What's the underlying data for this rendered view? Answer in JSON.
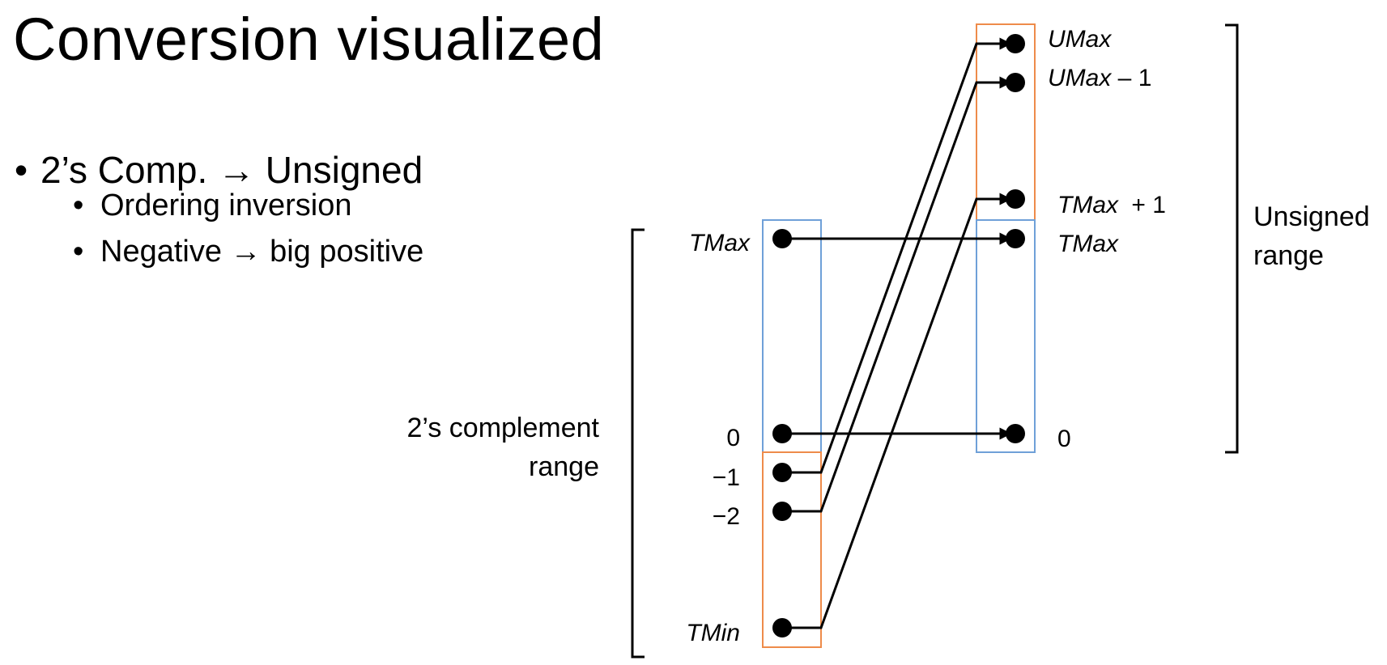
{
  "slide": {
    "title": "Conversion visualized",
    "bullets": [
      {
        "text": "2’s Comp. → Unsigned",
        "sub": [
          "Ordering inversion",
          "Negative → big positive"
        ]
      }
    ]
  },
  "diagram": {
    "left_range_label": [
      "2’s complement",
      "range"
    ],
    "right_range_label": [
      "Unsigned",
      "range"
    ],
    "left_labels": {
      "tmax": "TMax",
      "zero": "0",
      "neg1": "−1",
      "neg2": "−2",
      "tmin": "TMin"
    },
    "right_labels": {
      "umax": "UMax",
      "umax_minus1": "UMax",
      "minus_one": " – 1",
      "tmax_plus1": "TMax",
      "plus_one": " + 1",
      "tmax": "TMax",
      "zero": "0"
    },
    "colors": {
      "blue": "#6fa0d8",
      "orange": "#ee8b4a",
      "line": "#000000"
    }
  }
}
